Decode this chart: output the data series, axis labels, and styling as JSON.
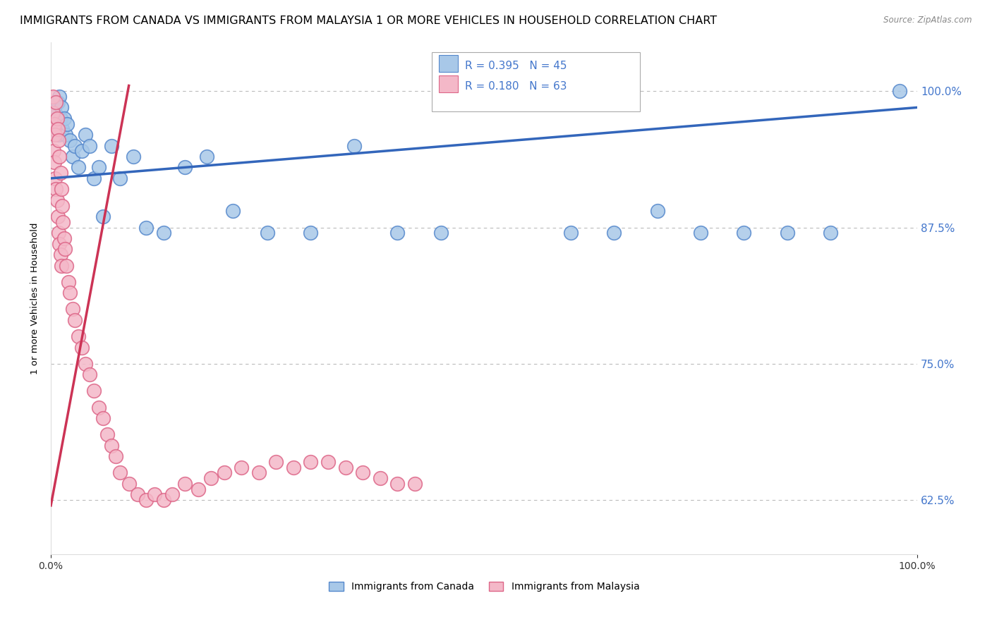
{
  "title": "IMMIGRANTS FROM CANADA VS IMMIGRANTS FROM MALAYSIA 1 OR MORE VEHICLES IN HOUSEHOLD CORRELATION CHART",
  "source": "Source: ZipAtlas.com",
  "ylabel": "1 or more Vehicles in Household",
  "canada_R": 0.395,
  "canada_N": 45,
  "malaysia_R": 0.18,
  "malaysia_N": 63,
  "canada_color": "#a8c8e8",
  "malaysia_color": "#f4b8c8",
  "canada_edge": "#5588cc",
  "malaysia_edge": "#dd6688",
  "trend_canada_color": "#3366bb",
  "trend_malaysia_color": "#cc3355",
  "background_color": "#ffffff",
  "grid_color": "#bbbbbb",
  "title_fontsize": 11.5,
  "axis_fontsize": 10,
  "legend_fontsize": 12,
  "canada_x": [
    0.002,
    0.004,
    0.005,
    0.006,
    0.007,
    0.008,
    0.009,
    0.01,
    0.011,
    0.012,
    0.013,
    0.015,
    0.017,
    0.019,
    0.022,
    0.025,
    0.028,
    0.032,
    0.036,
    0.04,
    0.045,
    0.05,
    0.055,
    0.06,
    0.07,
    0.08,
    0.095,
    0.11,
    0.13,
    0.155,
    0.18,
    0.21,
    0.25,
    0.3,
    0.35,
    0.4,
    0.45,
    0.6,
    0.65,
    0.7,
    0.75,
    0.8,
    0.85,
    0.9,
    0.98
  ],
  "canada_y": [
    0.975,
    0.985,
    0.98,
    0.97,
    0.965,
    0.99,
    0.96,
    0.995,
    0.975,
    0.985,
    0.965,
    0.975,
    0.96,
    0.97,
    0.955,
    0.94,
    0.95,
    0.93,
    0.945,
    0.96,
    0.95,
    0.92,
    0.93,
    0.885,
    0.95,
    0.92,
    0.94,
    0.875,
    0.87,
    0.93,
    0.94,
    0.89,
    0.87,
    0.87,
    0.95,
    0.87,
    0.87,
    0.87,
    0.87,
    0.89,
    0.87,
    0.87,
    0.87,
    0.87,
    1.0
  ],
  "malaysia_x": [
    0.002,
    0.002,
    0.003,
    0.003,
    0.004,
    0.004,
    0.005,
    0.005,
    0.006,
    0.006,
    0.007,
    0.007,
    0.008,
    0.008,
    0.009,
    0.009,
    0.01,
    0.01,
    0.011,
    0.011,
    0.012,
    0.012,
    0.013,
    0.014,
    0.015,
    0.016,
    0.018,
    0.02,
    0.022,
    0.025,
    0.028,
    0.032,
    0.036,
    0.04,
    0.045,
    0.05,
    0.055,
    0.06,
    0.065,
    0.07,
    0.075,
    0.08,
    0.09,
    0.1,
    0.11,
    0.12,
    0.13,
    0.14,
    0.155,
    0.17,
    0.185,
    0.2,
    0.22,
    0.24,
    0.26,
    0.28,
    0.3,
    0.32,
    0.34,
    0.36,
    0.38,
    0.4,
    0.42
  ],
  "malaysia_y": [
    0.995,
    0.98,
    0.965,
    0.945,
    0.97,
    0.935,
    0.96,
    0.92,
    0.99,
    0.91,
    0.975,
    0.9,
    0.965,
    0.885,
    0.955,
    0.87,
    0.94,
    0.86,
    0.925,
    0.85,
    0.91,
    0.84,
    0.895,
    0.88,
    0.865,
    0.855,
    0.84,
    0.825,
    0.815,
    0.8,
    0.79,
    0.775,
    0.765,
    0.75,
    0.74,
    0.725,
    0.71,
    0.7,
    0.685,
    0.675,
    0.665,
    0.65,
    0.64,
    0.63,
    0.625,
    0.63,
    0.625,
    0.63,
    0.64,
    0.635,
    0.645,
    0.65,
    0.655,
    0.65,
    0.66,
    0.655,
    0.66,
    0.66,
    0.655,
    0.65,
    0.645,
    0.64,
    0.64
  ],
  "canada_trend_x": [
    0.0,
    1.0
  ],
  "canada_trend_y": [
    0.92,
    0.985
  ],
  "malaysia_trend_x": [
    0.0,
    0.09
  ],
  "malaysia_trend_y": [
    0.62,
    1.005
  ],
  "xlim": [
    0.0,
    1.0
  ],
  "ylim": [
    0.575,
    1.045
  ],
  "ytick_vals": [
    0.625,
    0.75,
    0.875,
    1.0
  ],
  "ytick_labels": [
    "62.5%",
    "75.0%",
    "87.5%",
    "100.0%"
  ]
}
